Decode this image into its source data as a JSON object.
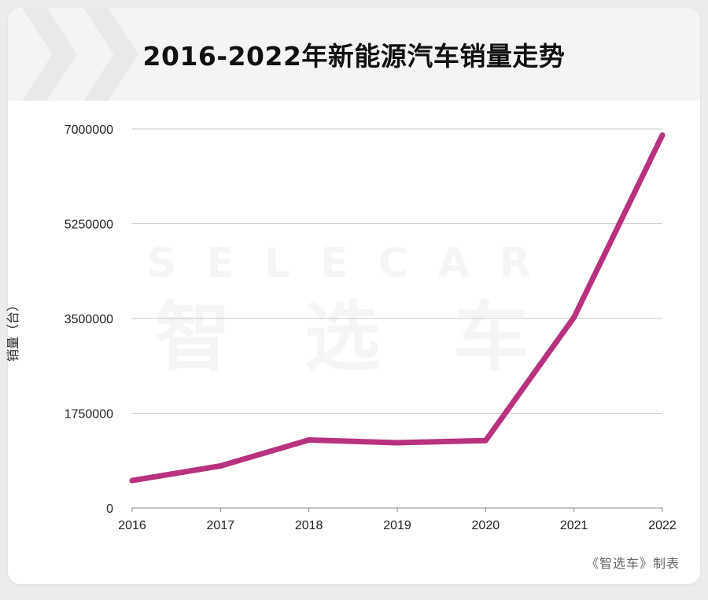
{
  "title": "2016-2022年新能源汽车销量走势",
  "credit": "《智选车》制表",
  "watermark": {
    "latin": "SELECAR",
    "cjk": "智 选 车"
  },
  "colors": {
    "line": "#B83280",
    "grid": "#c8c8c8",
    "axis": "#888888"
  },
  "chart_data": {
    "type": "line",
    "title": "2016-2022年新能源汽车销量走势",
    "xlabel": "",
    "ylabel": "销量（台）",
    "categories": [
      "2016",
      "2017",
      "2018",
      "2019",
      "2020",
      "2021",
      "2022"
    ],
    "series": [
      {
        "values": [
          507000,
          777000,
          1256000,
          1206000,
          1245000,
          3521000,
          6887000
        ]
      }
    ],
    "ylim": [
      0,
      7000000
    ],
    "yticks": [
      "0",
      "1750000",
      "3500000",
      "5250000",
      "7000000"
    ],
    "yticks_values": [
      0,
      1750000,
      3500000,
      5250000,
      7000000
    ],
    "grid": true,
    "legend": "none"
  }
}
